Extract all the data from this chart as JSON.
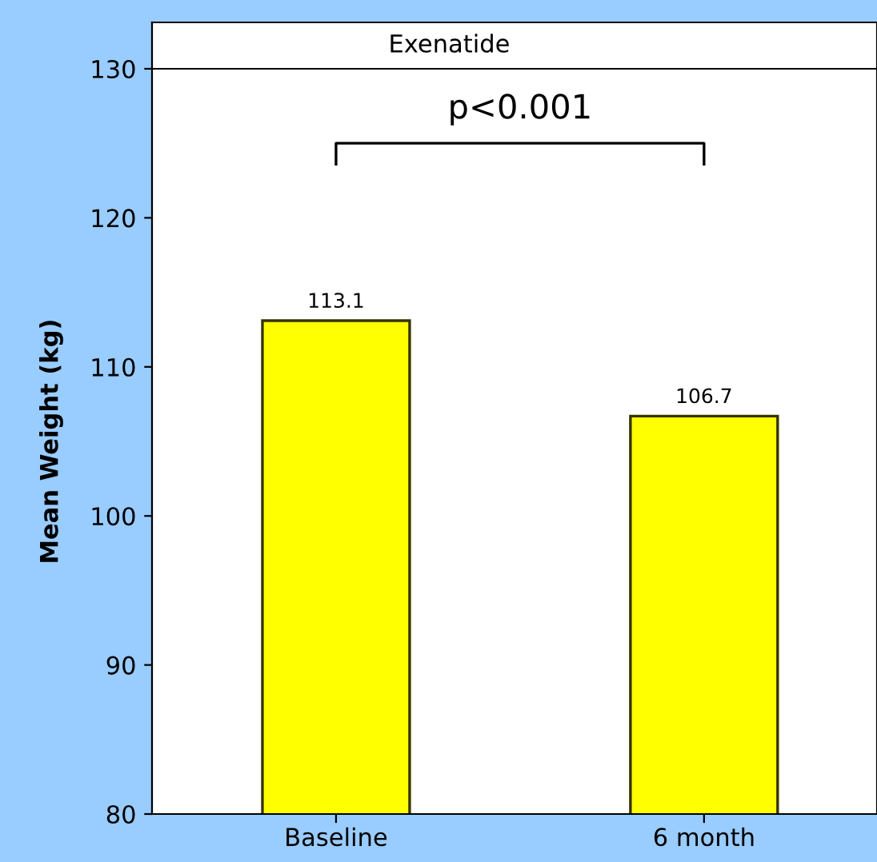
{
  "chart_data": {
    "type": "bar",
    "title": "Exenatide",
    "ylabel": "Mean Weight (kg)",
    "categories": [
      "Baseline",
      "6 month"
    ],
    "values": [
      113.1,
      106.7
    ],
    "color": "#ffff00",
    "data_labels": true,
    "ylim": [
      80,
      130
    ],
    "yticks": [
      80,
      90,
      100,
      110,
      120,
      130
    ],
    "grid": false,
    "legend": false,
    "annotations": [
      "p<0.001"
    ]
  }
}
